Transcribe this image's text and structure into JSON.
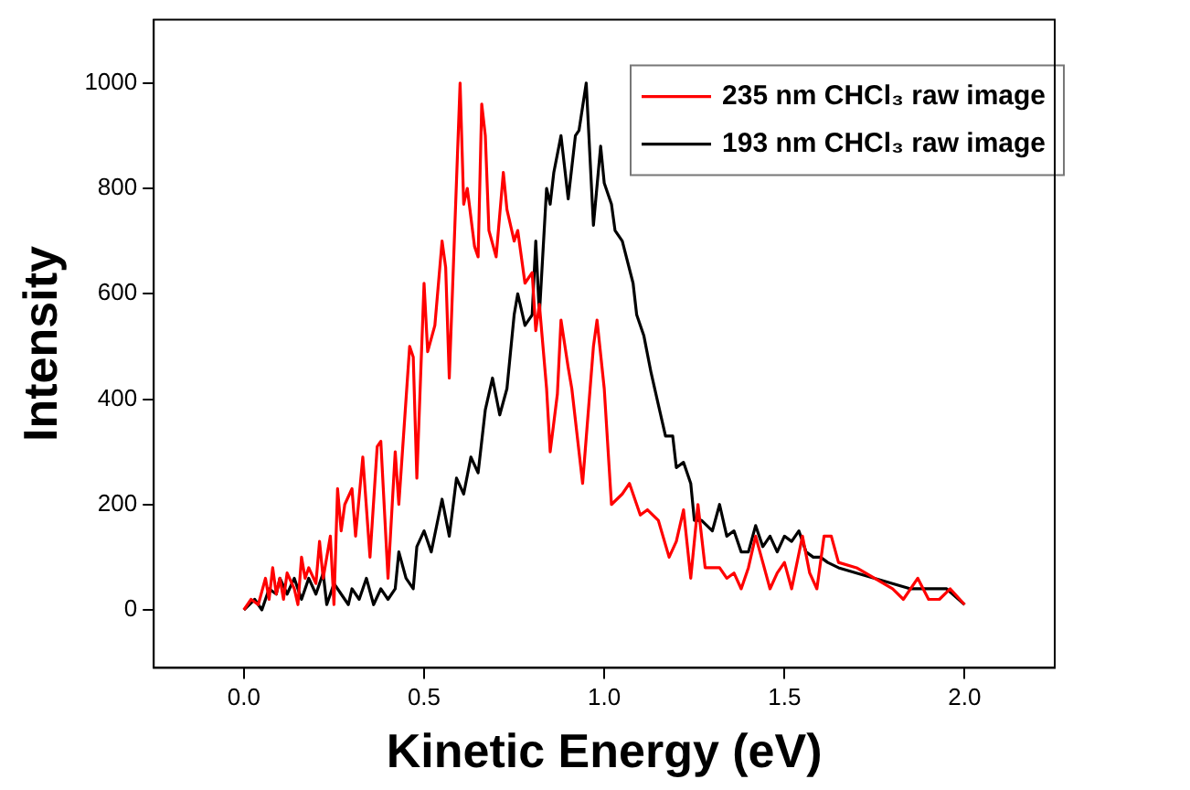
{
  "chart_data": {
    "type": "line",
    "xlabel": "Kinetic Energy (eV)",
    "ylabel": "Intensity",
    "xlim": [
      -0.25,
      2.25
    ],
    "ylim": [
      -110,
      1120
    ],
    "xticks": [
      {
        "value": 0,
        "label": "0.0"
      },
      {
        "value": 0.5,
        "label": "0.5"
      },
      {
        "value": 1,
        "label": "1.0"
      },
      {
        "value": 1.5,
        "label": "1.5"
      },
      {
        "value": 2,
        "label": "2.0"
      }
    ],
    "yticks": [
      0,
      200,
      400,
      600,
      800,
      1000
    ],
    "grid": false,
    "legend": "top right",
    "marker": "none",
    "line_style": "solid",
    "series": [
      {
        "name": "235 nm CHCl₃ raw image",
        "color": "#ff0000",
        "x": [
          0,
          0.02,
          0.04,
          0.06,
          0.07,
          0.08,
          0.09,
          0.1,
          0.11,
          0.12,
          0.14,
          0.15,
          0.16,
          0.17,
          0.18,
          0.2,
          0.21,
          0.22,
          0.24,
          0.25,
          0.26,
          0.27,
          0.28,
          0.3,
          0.31,
          0.33,
          0.35,
          0.37,
          0.38,
          0.4,
          0.42,
          0.43,
          0.46,
          0.47,
          0.48,
          0.5,
          0.51,
          0.53,
          0.55,
          0.56,
          0.57,
          0.6,
          0.61,
          0.62,
          0.64,
          0.65,
          0.66,
          0.67,
          0.68,
          0.7,
          0.72,
          0.73,
          0.75,
          0.76,
          0.78,
          0.8,
          0.81,
          0.82,
          0.84,
          0.85,
          0.87,
          0.88,
          0.9,
          0.91,
          0.94,
          0.97,
          0.98,
          1.0,
          1.02,
          1.05,
          1.07,
          1.09,
          1.1,
          1.12,
          1.15,
          1.18,
          1.2,
          1.22,
          1.24,
          1.26,
          1.28,
          1.3,
          1.32,
          1.34,
          1.36,
          1.38,
          1.4,
          1.42,
          1.44,
          1.46,
          1.48,
          1.5,
          1.52,
          1.55,
          1.57,
          1.59,
          1.61,
          1.63,
          1.65,
          1.7,
          1.75,
          1.8,
          1.83,
          1.87,
          1.9,
          1.93,
          1.96,
          2.0
        ],
        "values": [
          0,
          20,
          10,
          60,
          20,
          80,
          30,
          60,
          20,
          70,
          40,
          10,
          100,
          60,
          80,
          50,
          130,
          60,
          140,
          10,
          230,
          150,
          200,
          230,
          140,
          290,
          100,
          310,
          320,
          60,
          300,
          200,
          500,
          480,
          250,
          620,
          490,
          540,
          700,
          650,
          440,
          1000,
          770,
          800,
          690,
          670,
          960,
          900,
          720,
          670,
          830,
          760,
          700,
          720,
          620,
          640,
          530,
          580,
          420,
          300,
          410,
          550,
          460,
          420,
          240,
          500,
          550,
          420,
          200,
          220,
          240,
          200,
          180,
          190,
          170,
          100,
          130,
          190,
          60,
          200,
          80,
          80,
          80,
          60,
          70,
          40,
          80,
          140,
          90,
          40,
          70,
          90,
          40,
          140,
          70,
          40,
          140,
          140,
          90,
          80,
          60,
          40,
          20,
          60,
          20,
          20,
          40,
          10
        ]
      },
      {
        "name": "193 nm CHCl₃ raw image",
        "color": "#000000",
        "x": [
          0,
          0.03,
          0.05,
          0.07,
          0.09,
          0.1,
          0.12,
          0.14,
          0.16,
          0.18,
          0.2,
          0.22,
          0.23,
          0.25,
          0.27,
          0.29,
          0.3,
          0.32,
          0.34,
          0.36,
          0.38,
          0.4,
          0.42,
          0.43,
          0.45,
          0.47,
          0.48,
          0.5,
          0.52,
          0.55,
          0.57,
          0.59,
          0.61,
          0.63,
          0.65,
          0.67,
          0.69,
          0.71,
          0.73,
          0.75,
          0.76,
          0.78,
          0.8,
          0.81,
          0.82,
          0.84,
          0.85,
          0.86,
          0.88,
          0.9,
          0.92,
          0.93,
          0.95,
          0.97,
          0.99,
          1.0,
          1.02,
          1.03,
          1.05,
          1.08,
          1.09,
          1.11,
          1.13,
          1.15,
          1.17,
          1.19,
          1.2,
          1.22,
          1.24,
          1.25,
          1.27,
          1.3,
          1.32,
          1.34,
          1.36,
          1.38,
          1.4,
          1.42,
          1.44,
          1.46,
          1.48,
          1.5,
          1.52,
          1.54,
          1.56,
          1.58,
          1.6,
          1.62,
          1.65,
          1.7,
          1.75,
          1.8,
          1.85,
          1.9,
          1.95,
          2.0
        ],
        "values": [
          0,
          20,
          0,
          40,
          30,
          60,
          30,
          60,
          20,
          60,
          30,
          70,
          10,
          50,
          30,
          10,
          40,
          20,
          60,
          10,
          40,
          20,
          40,
          110,
          60,
          40,
          120,
          150,
          110,
          210,
          140,
          250,
          220,
          290,
          260,
          380,
          440,
          370,
          420,
          560,
          600,
          540,
          560,
          700,
          560,
          800,
          770,
          830,
          900,
          780,
          900,
          910,
          1000,
          730,
          880,
          810,
          770,
          720,
          700,
          620,
          560,
          520,
          450,
          390,
          330,
          330,
          270,
          280,
          240,
          170,
          170,
          150,
          200,
          140,
          150,
          110,
          110,
          160,
          120,
          140,
          110,
          140,
          130,
          150,
          110,
          100,
          100,
          90,
          80,
          70,
          60,
          50,
          40,
          40,
          40,
          10
        ]
      }
    ]
  }
}
